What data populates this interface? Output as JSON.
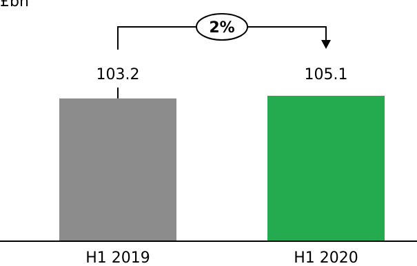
{
  "unit_label": "£bn",
  "chart_data": {
    "type": "bar",
    "categories": [
      "H1 2019",
      "H1 2020"
    ],
    "values": [
      103.2,
      105.1
    ],
    "colors": [
      "#8c8c8c",
      "#24ab4f"
    ],
    "change_annotation": "2%",
    "title": "",
    "xlabel": "",
    "ylabel": "£bn"
  }
}
